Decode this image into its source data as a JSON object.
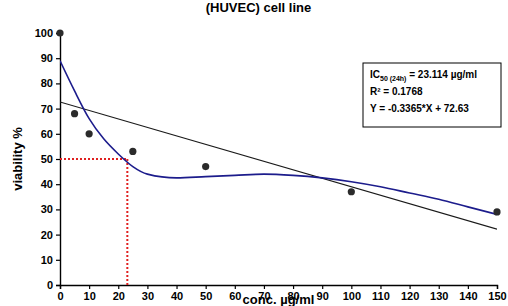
{
  "chart_data": {
    "type": "scatter",
    "title": "(HUVEC) cell line",
    "x_label": "conc. µg/ml",
    "y_label": "viability %",
    "xlim": [
      0,
      150
    ],
    "xticks": [
      0,
      10,
      20,
      30,
      40,
      50,
      60,
      70,
      80,
      90,
      100,
      110,
      120,
      130,
      140,
      150
    ],
    "ylim": [
      0,
      100
    ],
    "yticks": [
      0,
      10,
      20,
      30,
      40,
      50,
      60,
      70,
      80,
      90,
      100
    ],
    "series": [
      {
        "type": "scatter",
        "color": "#2b2b2b",
        "marker": "circle",
        "x": [
          0,
          5,
          10,
          25,
          50,
          100,
          150
        ],
        "values": [
          100,
          68,
          60,
          53,
          47,
          37,
          29
        ]
      },
      {
        "type": "line",
        "color": "#1a1a1a",
        "line_style": "solid",
        "x": [
          0,
          150
        ],
        "values": [
          72.63,
          22.16
        ]
      },
      {
        "type": "line",
        "color": "#1c1c8c",
        "line_style": "solid",
        "x": [
          0,
          5,
          10,
          15,
          20,
          25,
          30,
          40,
          50,
          60,
          70,
          80,
          90,
          100,
          110,
          120,
          130,
          140,
          150
        ],
        "values": [
          89,
          77,
          66,
          58,
          52,
          47,
          44,
          42.5,
          43,
          43.5,
          44,
          43.5,
          42.5,
          41,
          39,
          36.5,
          34,
          31,
          28
        ]
      }
    ],
    "reference_lines": {
      "x": 23.114,
      "y": 50,
      "color": "#e02020",
      "line_style": "dotted"
    },
    "annotations": [
      [
        {
          "text": "IC"
        },
        {
          "text": "50 (24h)",
          "sub": true
        },
        {
          "text": " = 23.114 µg/ml"
        }
      ],
      [
        {
          "text": "R² = 0.1768"
        }
      ],
      [
        {
          "text": "Y = -0.3365*X + 72.63"
        }
      ]
    ]
  }
}
